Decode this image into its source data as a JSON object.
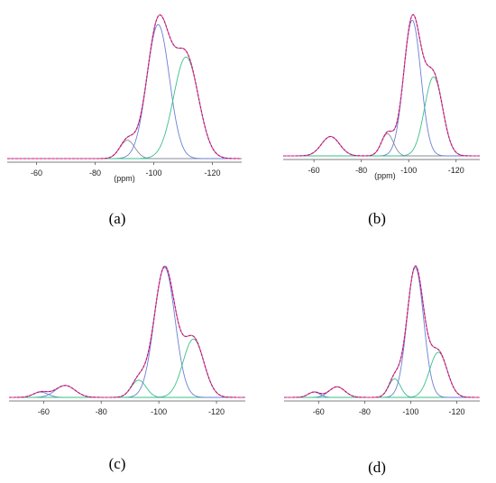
{
  "colors": {
    "fit": "#e6007e",
    "component_blue": "#6a7fd6",
    "component_green": "#3bbf8a",
    "component_gray": "#8a8a9a",
    "baseline": "#4bb7c9",
    "axis": "#555555"
  },
  "chart_data": [
    {
      "type": "line",
      "panel_label": "(a)",
      "xlabel": "(ppm)",
      "xlim": [
        -50,
        -130
      ],
      "x_reversed": true,
      "xticks": [
        -60,
        -80,
        -100,
        -120
      ],
      "xtick_labels": [
        "-60",
        "-80",
        "-100",
        "-120"
      ],
      "ylim": [
        0,
        1.06
      ],
      "yaxis_visible": false,
      "components": [
        {
          "shape": "gaussian",
          "center": -91,
          "height": 0.13,
          "fwhm": 6,
          "color": "component_gray"
        },
        {
          "shape": "gaussian",
          "center": -101.5,
          "height": 0.95,
          "fwhm": 9,
          "color": "component_blue"
        },
        {
          "shape": "gaussian",
          "center": -111,
          "height": 0.72,
          "fwhm": 10,
          "color": "component_green"
        }
      ]
    },
    {
      "type": "line",
      "panel_label": "(b)",
      "xlabel": "(ppm)",
      "xlim": [
        -47,
        -130
      ],
      "x_reversed": true,
      "xticks": [
        -60,
        -80,
        -100,
        -120
      ],
      "xtick_labels": [
        "-60",
        "-80",
        "-100",
        "-120"
      ],
      "ylim": [
        0,
        1.06
      ],
      "yaxis_visible": false,
      "components": [
        {
          "shape": "gaussian",
          "center": -67,
          "height": 0.14,
          "fwhm": 9,
          "color": "component_blue"
        },
        {
          "shape": "gaussian",
          "center": -91,
          "height": 0.16,
          "fwhm": 6,
          "color": "component_gray"
        },
        {
          "shape": "gaussian",
          "center": -101.5,
          "height": 0.98,
          "fwhm": 8.5,
          "color": "component_blue"
        },
        {
          "shape": "gaussian",
          "center": -110.5,
          "height": 0.57,
          "fwhm": 9,
          "color": "component_green"
        }
      ]
    },
    {
      "type": "line",
      "panel_label": "(c)",
      "xlabel": "",
      "xlim": [
        -48,
        -130
      ],
      "x_reversed": true,
      "xticks": [
        -60,
        -80,
        -100,
        -120
      ],
      "xtick_labels": [
        "-60",
        "-80",
        "-100",
        "-120"
      ],
      "ylim": [
        0,
        1.06
      ],
      "yaxis_visible": false,
      "components": [
        {
          "shape": "gaussian",
          "center": -59,
          "height": 0.04,
          "fwhm": 6,
          "color": "component_blue"
        },
        {
          "shape": "gaussian",
          "center": -67.5,
          "height": 0.09,
          "fwhm": 8,
          "color": "component_blue"
        },
        {
          "shape": "gaussian",
          "center": -93,
          "height": 0.13,
          "fwhm": 6,
          "color": "component_green"
        },
        {
          "shape": "gaussian",
          "center": -102,
          "height": 0.98,
          "fwhm": 8.5,
          "color": "component_blue"
        },
        {
          "shape": "gaussian",
          "center": -112,
          "height": 0.44,
          "fwhm": 8.5,
          "color": "component_green"
        }
      ]
    },
    {
      "type": "line",
      "panel_label": "(d)",
      "xlabel": "",
      "xlim": [
        -45,
        -130
      ],
      "x_reversed": true,
      "xticks": [
        -60,
        -80,
        -100,
        -120
      ],
      "xtick_labels": [
        "-60",
        "-80",
        "-100",
        "-120"
      ],
      "ylim": [
        0,
        1.06
      ],
      "yaxis_visible": false,
      "components": [
        {
          "shape": "gaussian",
          "center": -58,
          "height": 0.04,
          "fwhm": 6,
          "color": "component_blue"
        },
        {
          "shape": "gaussian",
          "center": -68,
          "height": 0.08,
          "fwhm": 8,
          "color": "component_blue"
        },
        {
          "shape": "gaussian",
          "center": -93,
          "height": 0.14,
          "fwhm": 6,
          "color": "component_green"
        },
        {
          "shape": "gaussian",
          "center": -102,
          "height": 0.98,
          "fwhm": 8.5,
          "color": "component_blue"
        },
        {
          "shape": "gaussian",
          "center": -112,
          "height": 0.34,
          "fwhm": 9,
          "color": "component_green"
        }
      ]
    }
  ]
}
